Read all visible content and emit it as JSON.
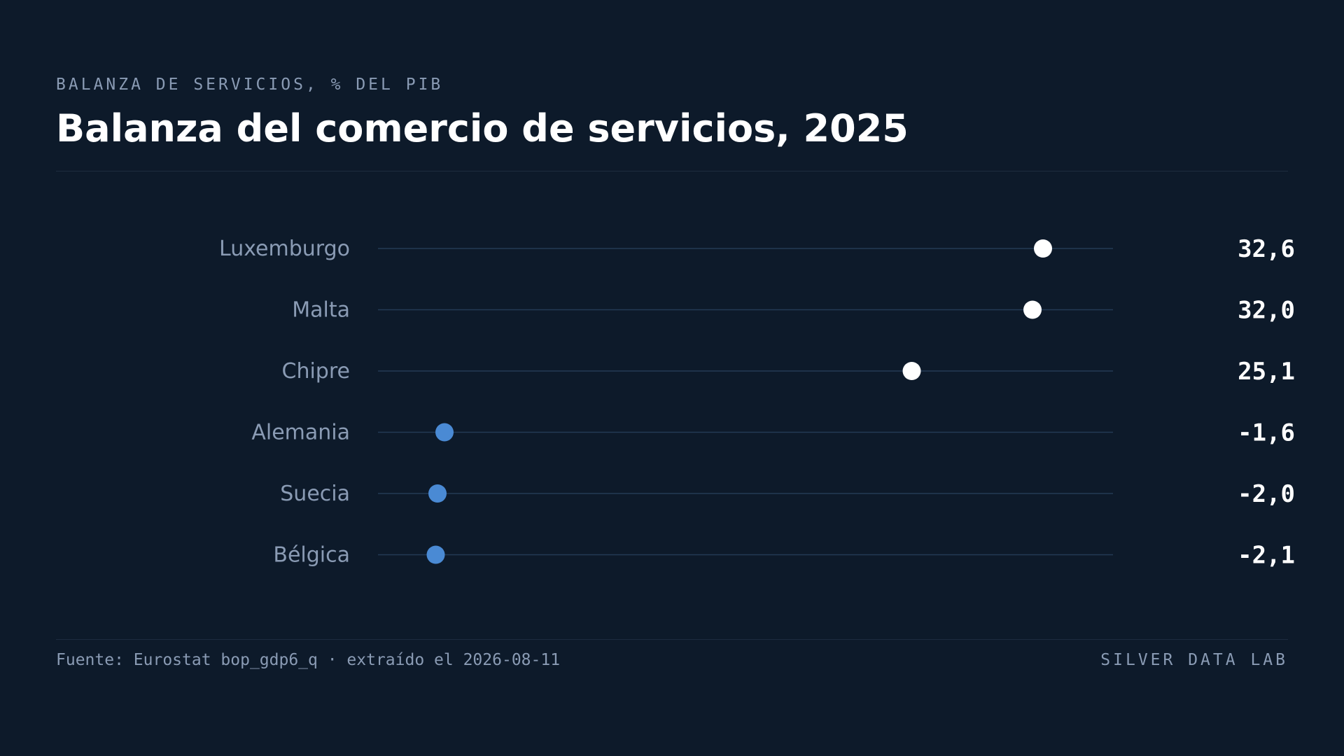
{
  "header": {
    "kicker": "BALANZA DE SERVICIOS, % DEL PIB",
    "title": "Balanza del comercio de servicios, 2025"
  },
  "footer": {
    "source": "Fuente: Eurostat bop_gdp6_q · extraído el 2026-08-11",
    "brand": "SILVER DATA LAB"
  },
  "colors": {
    "background": "#0d1a2a",
    "positive": "#ffffff",
    "negative": "#4a8ad4",
    "track": "#243a55",
    "label": "#8a9bb4",
    "value": "#ffffff"
  },
  "chart_data": {
    "type": "scatter",
    "subtype": "dot-plot",
    "title": "Balanza del comercio de servicios, 2025",
    "categories": [
      "Luxemburgo",
      "Malta",
      "Chipre",
      "Alemania",
      "Suecia",
      "Bélgica"
    ],
    "values": [
      32.6,
      32.0,
      25.1,
      -1.6,
      -2.0,
      -2.1
    ],
    "value_labels": [
      "32,6",
      "32,0",
      "25,1",
      "-1,6",
      "-2,0",
      "-2,1"
    ],
    "xlim": [
      -5.4,
      36.6
    ],
    "grid": false,
    "legend": "none"
  }
}
